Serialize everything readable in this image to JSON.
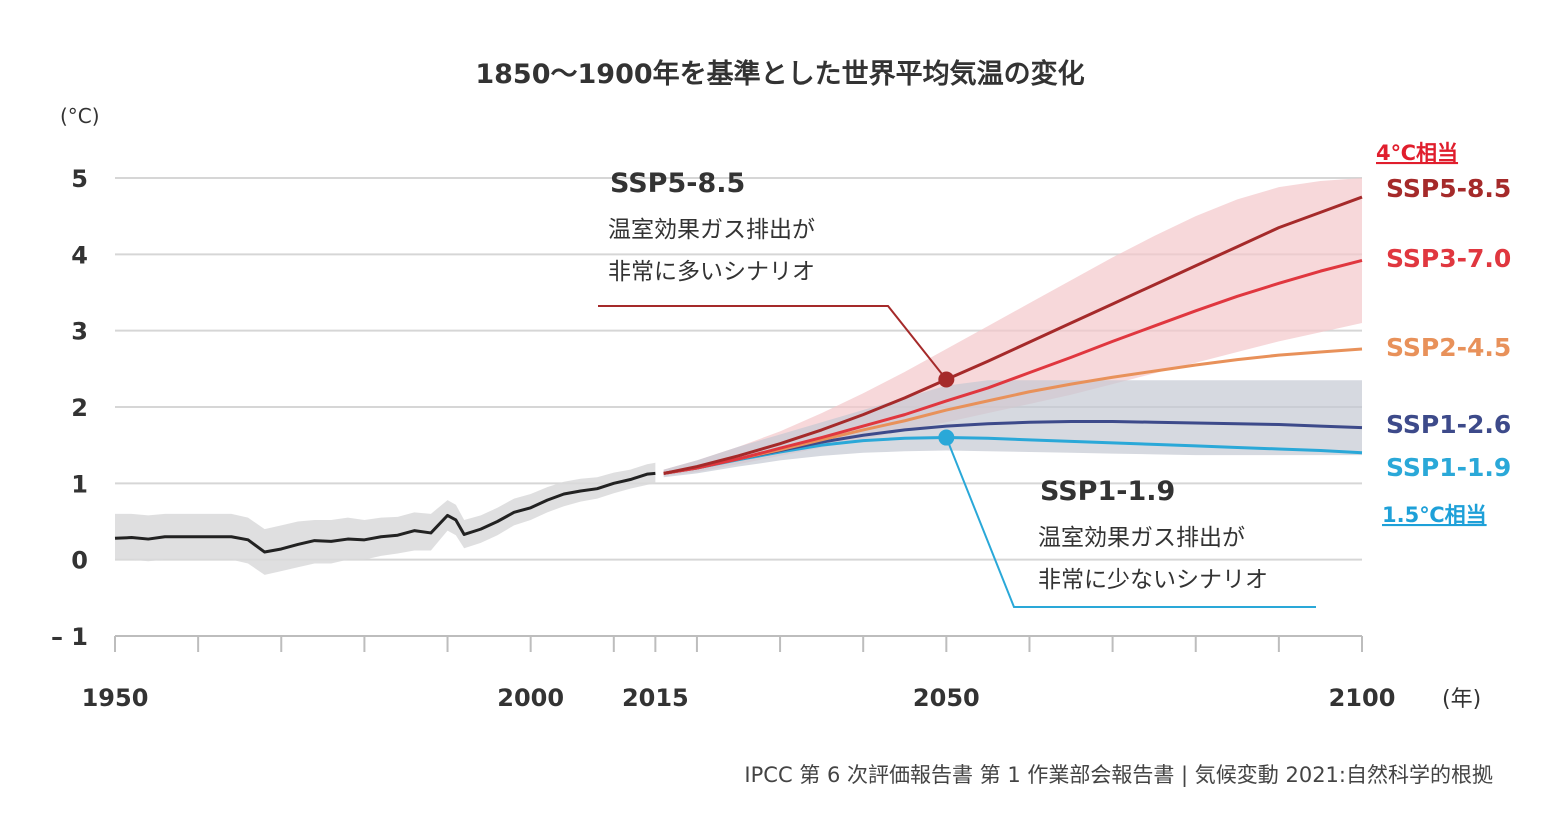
{
  "chart_data": {
    "type": "line",
    "title": "1850〜1900年を基準とした世界平均気温の変化",
    "ylabel": "(°C)",
    "xlabel": "(年)",
    "ylim": [
      -1,
      5
    ],
    "xlim": [
      1950,
      2100
    ],
    "y_ticks": [
      "5",
      "4",
      "3",
      "2",
      "1",
      "0",
      "– 1"
    ],
    "y_tick_values": [
      5,
      4,
      3,
      2,
      1,
      0,
      -1
    ],
    "x_ticks": [
      1950,
      2000,
      2015,
      2050,
      2100
    ],
    "x_tick_labels": [
      "1950",
      "2000",
      "2015",
      "2050",
      "2100"
    ],
    "grid": true,
    "historical": {
      "color": "#222222",
      "band_color": "#d9d9db",
      "x": [
        1950,
        1952,
        1954,
        1956,
        1958,
        1960,
        1962,
        1964,
        1966,
        1968,
        1970,
        1972,
        1974,
        1976,
        1978,
        1980,
        1982,
        1984,
        1986,
        1988,
        1990,
        1991,
        1992,
        1994,
        1996,
        1998,
        2000,
        2002,
        2004,
        2006,
        2008,
        2010,
        2012,
        2014,
        2015
      ],
      "y": [
        0.28,
        0.29,
        0.27,
        0.3,
        0.3,
        0.3,
        0.3,
        0.3,
        0.26,
        0.1,
        0.14,
        0.2,
        0.25,
        0.24,
        0.27,
        0.26,
        0.3,
        0.32,
        0.38,
        0.35,
        0.58,
        0.52,
        0.33,
        0.4,
        0.5,
        0.62,
        0.68,
        0.78,
        0.86,
        0.9,
        0.93,
        1.0,
        1.05,
        1.12,
        1.13
      ],
      "lo": [
        0.0,
        0.0,
        -0.02,
        0.0,
        0.0,
        0.0,
        0.0,
        0.0,
        -0.05,
        -0.2,
        -0.15,
        -0.1,
        -0.05,
        -0.05,
        0.0,
        0.0,
        0.05,
        0.08,
        0.12,
        0.12,
        0.38,
        0.32,
        0.15,
        0.22,
        0.32,
        0.45,
        0.52,
        0.62,
        0.7,
        0.76,
        0.8,
        0.87,
        0.93,
        0.98,
        1.0
      ],
      "hi": [
        0.6,
        0.6,
        0.58,
        0.6,
        0.6,
        0.6,
        0.6,
        0.6,
        0.55,
        0.4,
        0.45,
        0.5,
        0.52,
        0.52,
        0.55,
        0.52,
        0.55,
        0.56,
        0.62,
        0.6,
        0.78,
        0.72,
        0.52,
        0.58,
        0.68,
        0.8,
        0.86,
        0.95,
        1.02,
        1.06,
        1.08,
        1.14,
        1.18,
        1.25,
        1.27
      ]
    },
    "projection_x": [
      2016,
      2020,
      2025,
      2030,
      2035,
      2040,
      2045,
      2050,
      2055,
      2060,
      2065,
      2070,
      2075,
      2080,
      2085,
      2090,
      2095,
      2100
    ],
    "series": [
      {
        "name": "SSP5-8.5",
        "color": "#a52a2a",
        "y": [
          1.13,
          1.22,
          1.36,
          1.52,
          1.7,
          1.9,
          2.12,
          2.36,
          2.6,
          2.85,
          3.1,
          3.35,
          3.6,
          3.85,
          4.1,
          4.35,
          4.55,
          4.75
        ]
      },
      {
        "name": "SSP3-7.0",
        "color": "#e0373f",
        "y": [
          1.13,
          1.2,
          1.32,
          1.46,
          1.6,
          1.75,
          1.9,
          2.08,
          2.25,
          2.45,
          2.65,
          2.86,
          3.06,
          3.26,
          3.45,
          3.62,
          3.78,
          3.92
        ]
      },
      {
        "name": "SSP2-4.5",
        "color": "#e8915a",
        "y": [
          1.13,
          1.2,
          1.32,
          1.44,
          1.57,
          1.7,
          1.82,
          1.96,
          2.08,
          2.2,
          2.3,
          2.39,
          2.47,
          2.55,
          2.62,
          2.68,
          2.72,
          2.76
        ]
      },
      {
        "name": "SSP1-2.6",
        "color": "#3d4a8a",
        "y": [
          1.13,
          1.2,
          1.32,
          1.43,
          1.54,
          1.63,
          1.7,
          1.75,
          1.78,
          1.8,
          1.81,
          1.81,
          1.8,
          1.79,
          1.78,
          1.77,
          1.75,
          1.73
        ]
      },
      {
        "name": "SSP1-1.9",
        "color": "#2aa8d8",
        "y": [
          1.13,
          1.2,
          1.31,
          1.41,
          1.5,
          1.56,
          1.59,
          1.6,
          1.59,
          1.57,
          1.55,
          1.53,
          1.51,
          1.49,
          1.47,
          1.45,
          1.43,
          1.4
        ]
      }
    ],
    "bands": [
      {
        "name": "high",
        "color": "#f4c7cb",
        "lo": [
          1.1,
          1.15,
          1.25,
          1.36,
          1.47,
          1.58,
          1.69,
          1.8,
          1.92,
          2.04,
          2.16,
          2.3,
          2.44,
          2.58,
          2.72,
          2.86,
          2.98,
          3.1
        ],
        "hi": [
          1.18,
          1.3,
          1.48,
          1.68,
          1.92,
          2.18,
          2.46,
          2.76,
          3.06,
          3.36,
          3.66,
          3.96,
          4.24,
          4.5,
          4.72,
          4.88,
          4.96,
          5.0
        ]
      },
      {
        "name": "low",
        "color": "#c4c9d3",
        "lo": [
          1.08,
          1.13,
          1.22,
          1.3,
          1.36,
          1.4,
          1.42,
          1.43,
          1.42,
          1.41,
          1.4,
          1.39,
          1.38,
          1.37,
          1.37,
          1.37,
          1.37,
          1.37
        ],
        "hi": [
          1.18,
          1.3,
          1.48,
          1.64,
          1.8,
          1.96,
          2.12,
          2.28,
          2.35,
          2.35,
          2.35,
          2.35,
          2.35,
          2.35,
          2.35,
          2.35,
          2.35,
          2.35
        ]
      }
    ],
    "callouts": [
      {
        "series": "SSP5-8.5",
        "title": "SSP5-8.5",
        "lines": [
          "温室効果ガス排出が",
          "非常に多いシナリオ"
        ],
        "point_x": 2050,
        "point_y": 2.36,
        "color": "#a52a2a"
      },
      {
        "series": "SSP1-1.9",
        "title": "SSP1-1.9",
        "lines": [
          "温室効果ガス排出が",
          "非常に少ないシナリオ"
        ],
        "point_x": 2050,
        "point_y": 1.6,
        "color": "#2aa8d8"
      }
    ],
    "equiv_labels": {
      "high": {
        "text": "4℃相当",
        "color": "#e01e2d"
      },
      "low": {
        "text": "1.5℃相当",
        "color": "#1ea0d8"
      }
    },
    "source": "IPCC 第 6 次評価報告書 第 1 作業部会報告書 | 気候変動 2021:自然科学的根拠"
  }
}
